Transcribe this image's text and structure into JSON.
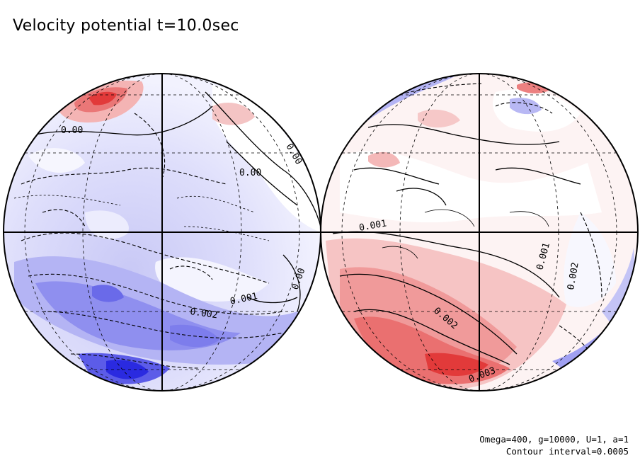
{
  "title": "Velocity potential t=10.0sec",
  "footer": {
    "params": "Omega=400, g=10000, U=1, a=1",
    "interval": "Contour interval=0.0005"
  },
  "palette": {
    "negative_deep": "#2a2ae0",
    "negative_mid": "#8f8ff0",
    "negative_light": "#dcdcfa",
    "positive_deep": "#e23a3a",
    "positive_mid": "#f2a0a0",
    "positive_light": "#fbe0e0",
    "line": "#000000"
  },
  "left_globe": {
    "contour_labels": [
      "0.00",
      "0.00",
      "0.00",
      "0.001",
      "0.002",
      "0.00"
    ]
  },
  "right_globe": {
    "contour_labels": [
      "0.001",
      "0.001",
      "0.002",
      "0.002",
      "0.003"
    ]
  }
}
